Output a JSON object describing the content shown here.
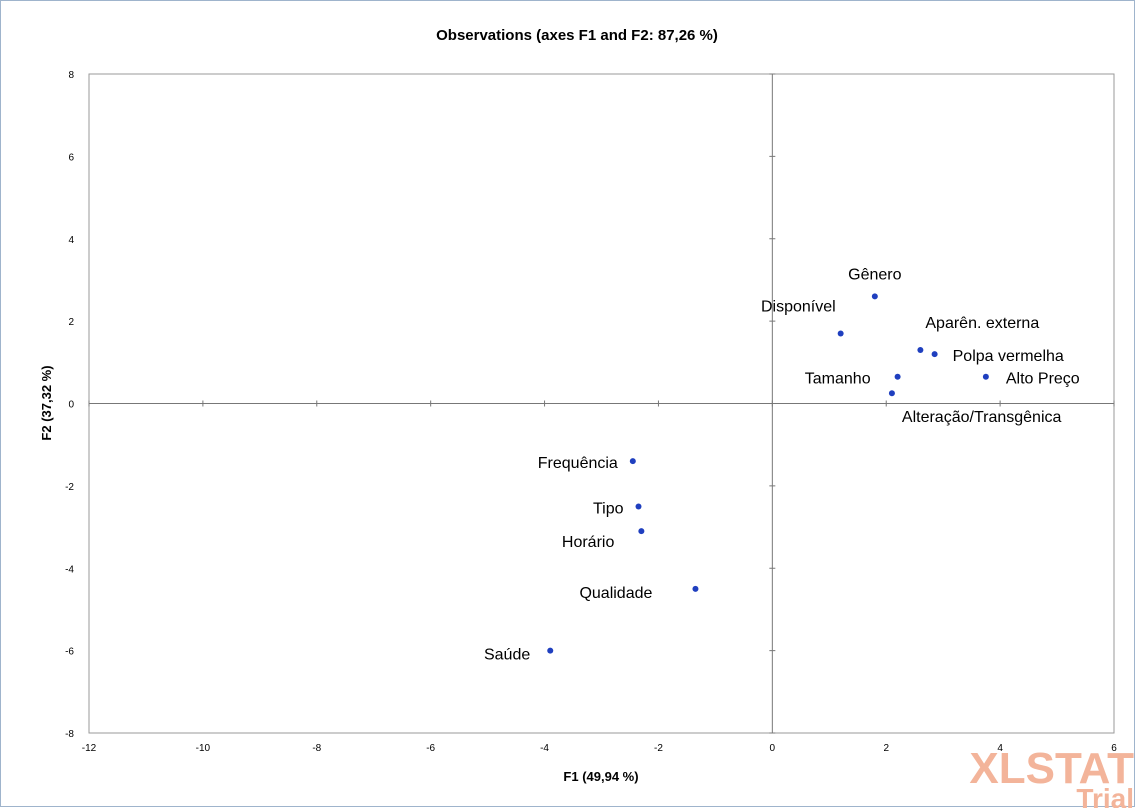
{
  "chart_data": {
    "type": "scatter",
    "title": "Observations (axes F1 and F2: 87,26 %)",
    "xlabel": "F1 (49,94 %)",
    "ylabel": "F2 (37,32 %)",
    "xlim": [
      -12,
      6
    ],
    "ylim": [
      -8,
      8
    ],
    "xticks": [
      "-12",
      "-10",
      "-8",
      "-6",
      "-4",
      "-2",
      "0",
      "2",
      "4",
      "6"
    ],
    "yticks": [
      "-8",
      "-6",
      "-4",
      "-2",
      "0",
      "2",
      "4",
      "6",
      "8"
    ],
    "grid": false,
    "point_color": "#1f3fbf",
    "points": [
      {
        "label": "Gênero",
        "x": 1.8,
        "y": 2.6
      },
      {
        "label": "Disponível",
        "x": 1.2,
        "y": 1.7
      },
      {
        "label": "Aparên. externa",
        "x": 2.6,
        "y": 1.3
      },
      {
        "label": "Polpa vermelha",
        "x": 2.85,
        "y": 1.2
      },
      {
        "label": "Tamanho",
        "x": 2.2,
        "y": 0.65
      },
      {
        "label": "Alto Preço",
        "x": 3.75,
        "y": 0.65
      },
      {
        "label": "Alteração/Transgênica",
        "x": 2.1,
        "y": 0.25
      },
      {
        "label": "Frequência",
        "x": -2.45,
        "y": -1.4
      },
      {
        "label": "Tipo",
        "x": -2.35,
        "y": -2.5
      },
      {
        "label": "Horário",
        "x": -2.3,
        "y": -3.1
      },
      {
        "label": "Qualidade",
        "x": -1.35,
        "y": -4.5
      },
      {
        "label": "Saúde",
        "x": -3.9,
        "y": -6.0
      }
    ]
  },
  "watermark": {
    "line1": "XLSTAT",
    "line2": "Trial"
  }
}
